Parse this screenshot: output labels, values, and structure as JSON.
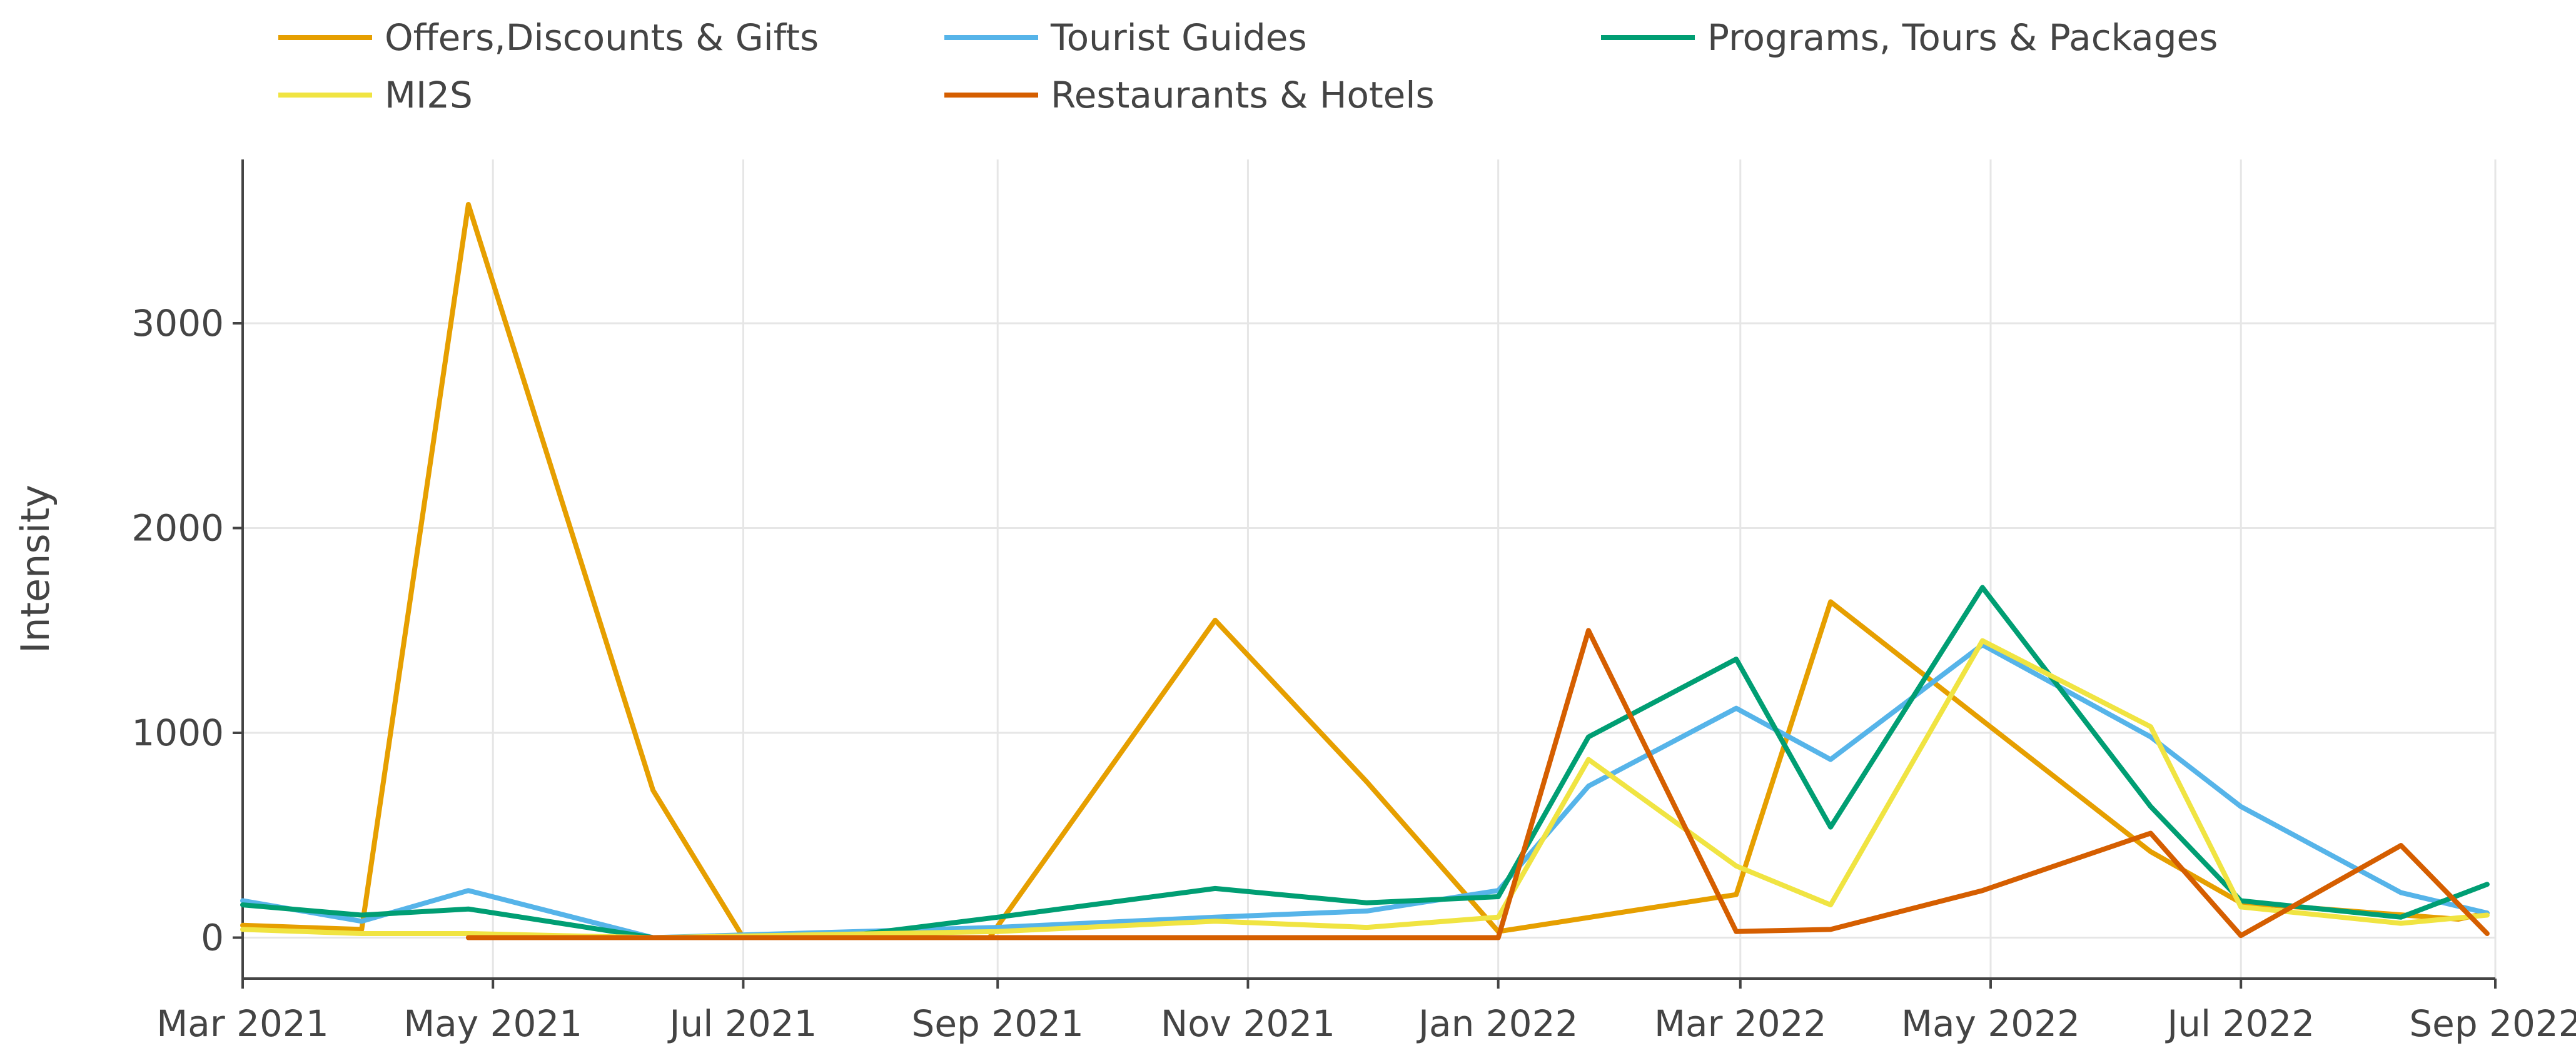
{
  "chart_data": {
    "type": "line",
    "title": "",
    "xlabel": "",
    "ylabel": "Intensity",
    "x_type": "date",
    "xlim": [
      "2021-03-01",
      "2022-09-01"
    ],
    "ylim": [
      -200,
      3800
    ],
    "grid": true,
    "legend_position": "top",
    "x_ticks": [
      {
        "value": "2021-03-01",
        "label": "Mar 2021"
      },
      {
        "value": "2021-05-01",
        "label": "May 2021"
      },
      {
        "value": "2021-07-01",
        "label": "Jul 2021"
      },
      {
        "value": "2021-09-01",
        "label": "Sep 2021"
      },
      {
        "value": "2021-11-01",
        "label": "Nov 2021"
      },
      {
        "value": "2022-01-01",
        "label": "Jan 2022"
      },
      {
        "value": "2022-03-01",
        "label": "Mar 2022"
      },
      {
        "value": "2022-05-01",
        "label": "May 2022"
      },
      {
        "value": "2022-07-01",
        "label": "Jul 2022"
      },
      {
        "value": "2022-09-01",
        "label": "Sep 2022"
      }
    ],
    "y_ticks": [
      {
        "value": 0,
        "label": "0"
      },
      {
        "value": 1000,
        "label": "1000"
      },
      {
        "value": 2000,
        "label": "2000"
      },
      {
        "value": 3000,
        "label": "3000"
      }
    ],
    "series": [
      {
        "name": "Offers,Discounts & Gifts",
        "color": "#E69F00",
        "points": [
          {
            "x": "2021-03-01",
            "y": 60
          },
          {
            "x": "2021-03-30",
            "y": 40
          },
          {
            "x": "2021-04-25",
            "y": 3580
          },
          {
            "x": "2021-06-09",
            "y": 720
          },
          {
            "x": "2021-07-01",
            "y": 0
          },
          {
            "x": "2021-08-30",
            "y": 0
          },
          {
            "x": "2021-10-24",
            "y": 1550
          },
          {
            "x": "2021-11-30",
            "y": 760
          },
          {
            "x": "2022-01-01",
            "y": 30
          },
          {
            "x": "2022-02-28",
            "y": 210
          },
          {
            "x": "2022-03-23",
            "y": 1640
          },
          {
            "x": "2022-04-29",
            "y": 1060
          },
          {
            "x": "2022-06-09",
            "y": 420
          },
          {
            "x": "2022-07-01",
            "y": 170
          },
          {
            "x": "2022-08-23",
            "y": 90
          },
          {
            "x": "2022-08-30",
            "y": 120
          }
        ]
      },
      {
        "name": "Tourist Guides",
        "color": "#56B4E9",
        "points": [
          {
            "x": "2021-03-01",
            "y": 180
          },
          {
            "x": "2021-03-30",
            "y": 80
          },
          {
            "x": "2021-04-25",
            "y": 230
          },
          {
            "x": "2021-06-09",
            "y": 0
          },
          {
            "x": "2021-09-01",
            "y": 50
          },
          {
            "x": "2021-10-24",
            "y": 100
          },
          {
            "x": "2021-11-30",
            "y": 130
          },
          {
            "x": "2022-01-01",
            "y": 230
          },
          {
            "x": "2022-01-23",
            "y": 740
          },
          {
            "x": "2022-02-28",
            "y": 1120
          },
          {
            "x": "2022-03-23",
            "y": 870
          },
          {
            "x": "2022-04-29",
            "y": 1430
          },
          {
            "x": "2022-06-09",
            "y": 980
          },
          {
            "x": "2022-07-01",
            "y": 640
          },
          {
            "x": "2022-08-09",
            "y": 220
          },
          {
            "x": "2022-08-30",
            "y": 120
          }
        ]
      },
      {
        "name": "Programs, Tours & Packages",
        "color": "#009E73",
        "points": [
          {
            "x": "2021-03-01",
            "y": 160
          },
          {
            "x": "2021-03-30",
            "y": 110
          },
          {
            "x": "2021-04-25",
            "y": 140
          },
          {
            "x": "2021-06-09",
            "y": 0
          },
          {
            "x": "2021-07-23",
            "y": 0
          },
          {
            "x": "2021-09-01",
            "y": 100
          },
          {
            "x": "2021-10-24",
            "y": 240
          },
          {
            "x": "2021-11-30",
            "y": 170
          },
          {
            "x": "2022-01-01",
            "y": 200
          },
          {
            "x": "2022-01-23",
            "y": 980
          },
          {
            "x": "2022-02-28",
            "y": 1360
          },
          {
            "x": "2022-03-23",
            "y": 540
          },
          {
            "x": "2022-04-29",
            "y": 1710
          },
          {
            "x": "2022-06-09",
            "y": 640
          },
          {
            "x": "2022-07-01",
            "y": 180
          },
          {
            "x": "2022-08-09",
            "y": 100
          },
          {
            "x": "2022-08-30",
            "y": 260
          }
        ]
      },
      {
        "name": "MI2S",
        "color": "#F0E442",
        "points": [
          {
            "x": "2021-03-01",
            "y": 40
          },
          {
            "x": "2021-03-30",
            "y": 20
          },
          {
            "x": "2021-04-25",
            "y": 20
          },
          {
            "x": "2021-06-09",
            "y": 0
          },
          {
            "x": "2021-09-01",
            "y": 30
          },
          {
            "x": "2021-10-24",
            "y": 80
          },
          {
            "x": "2021-11-30",
            "y": 50
          },
          {
            "x": "2022-01-01",
            "y": 100
          },
          {
            "x": "2022-01-23",
            "y": 870
          },
          {
            "x": "2022-02-28",
            "y": 350
          },
          {
            "x": "2022-03-23",
            "y": 160
          },
          {
            "x": "2022-04-29",
            "y": 1450
          },
          {
            "x": "2022-06-09",
            "y": 1030
          },
          {
            "x": "2022-07-01",
            "y": 150
          },
          {
            "x": "2022-08-09",
            "y": 70
          },
          {
            "x": "2022-08-30",
            "y": 110
          }
        ]
      },
      {
        "name": "Restaurants & Hotels",
        "color": "#D55E00",
        "points": [
          {
            "x": "2021-04-25",
            "y": 0
          },
          {
            "x": "2022-01-01",
            "y": 0
          },
          {
            "x": "2022-01-23",
            "y": 1500
          },
          {
            "x": "2022-02-28",
            "y": 30
          },
          {
            "x": "2022-03-23",
            "y": 40
          },
          {
            "x": "2022-04-29",
            "y": 230
          },
          {
            "x": "2022-06-09",
            "y": 510
          },
          {
            "x": "2022-07-01",
            "y": 10
          },
          {
            "x": "2022-08-09",
            "y": 450
          },
          {
            "x": "2022-08-30",
            "y": 20
          }
        ]
      }
    ]
  }
}
